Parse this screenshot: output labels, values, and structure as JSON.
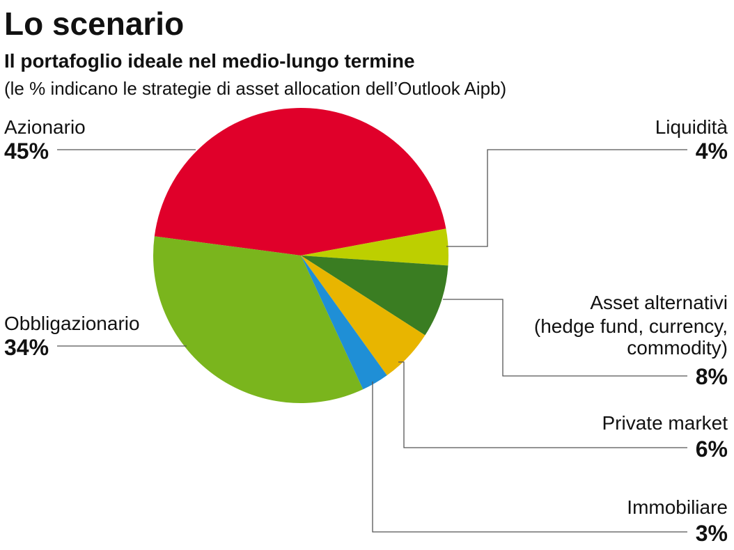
{
  "header": {
    "title": "Lo scenario",
    "subtitle": "Il portafoglio ideale nel medio-lungo termine",
    "note": "(le % indicano le strategie di asset allocation dell’Outlook Aipb)"
  },
  "chart_data": {
    "type": "pie",
    "title": "Lo scenario",
    "subtitle": "Il portafoglio ideale nel medio-lungo termine",
    "unit": "%",
    "slices": [
      {
        "id": "azionario",
        "label": [
          "Azionario"
        ],
        "value": 45,
        "display": "45%",
        "color": "#e0002a"
      },
      {
        "id": "liquidita",
        "label": [
          "Liquidità"
        ],
        "value": 4,
        "display": "4%",
        "color": "#bdcf00"
      },
      {
        "id": "asset-alternativi",
        "label": [
          "Asset alternativi",
          "(hedge fund, currency,",
          "commodity)"
        ],
        "value": 8,
        "display": "8%",
        "color": "#3a7d22"
      },
      {
        "id": "private-market",
        "label": [
          "Private market"
        ],
        "value": 6,
        "display": "6%",
        "color": "#e8b500"
      },
      {
        "id": "immobiliare",
        "label": [
          "Immobiliare"
        ],
        "value": 3,
        "display": "3%",
        "color": "#1f8fd6"
      },
      {
        "id": "obbligazionario",
        "label": [
          "Obbligazionario"
        ],
        "value": 34,
        "display": "34%",
        "color": "#7ab51d"
      }
    ]
  }
}
